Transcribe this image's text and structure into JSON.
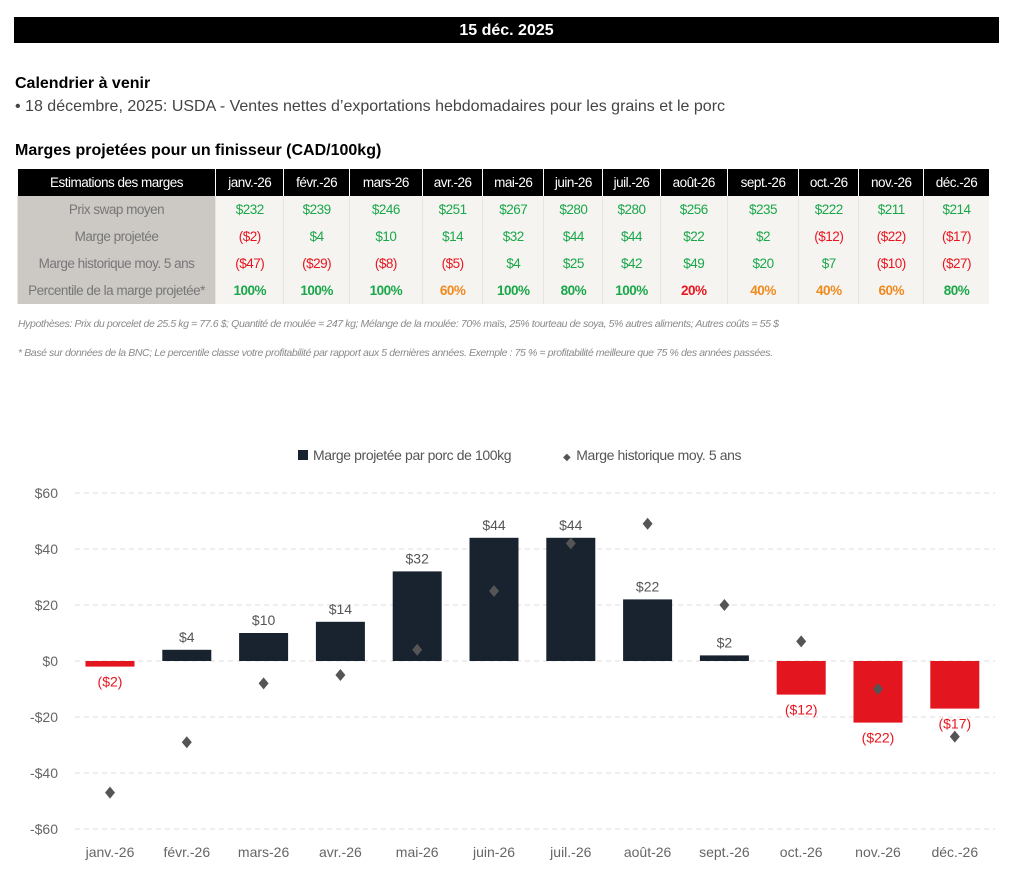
{
  "header": {
    "date": "15 déc. 2025"
  },
  "calendar": {
    "title": "Calendrier à venir",
    "events": [
      "• 18 décembre, 2025: USDA - Ventes nettes d’exportations hebdomadaires pour les grains et le porc"
    ]
  },
  "table": {
    "title": "Marges projetées pour un finisseur (CAD/100kg)",
    "header_label": "Estimations des marges",
    "months": [
      "janv.-26",
      "févr.-26",
      "mars-26",
      "avr.-26",
      "mai-26",
      "juin-26",
      "juil.-26",
      "août-26",
      "sept.-26",
      "oct.-26",
      "nov.-26",
      "déc.-26"
    ],
    "rows": [
      {
        "label": "Prix swap moyen",
        "values": [
          "$232",
          "$239",
          "$246",
          "$251",
          "$267",
          "$280",
          "$280",
          "$256",
          "$235",
          "$222",
          "$211",
          "$214"
        ],
        "colors": [
          "g",
          "g",
          "g",
          "g",
          "g",
          "g",
          "g",
          "g",
          "g",
          "g",
          "g",
          "g"
        ]
      },
      {
        "label": "Marge projetée",
        "values": [
          "($2)",
          "$4",
          "$10",
          "$14",
          "$32",
          "$44",
          "$44",
          "$22",
          "$2",
          "($12)",
          "($22)",
          "($17)"
        ],
        "colors": [
          "r",
          "g",
          "g",
          "g",
          "g",
          "g",
          "g",
          "g",
          "g",
          "r",
          "r",
          "r"
        ]
      },
      {
        "label": "Marge historique moy. 5 ans",
        "values": [
          "($47)",
          "($29)",
          "($8)",
          "($5)",
          "$4",
          "$25",
          "$42",
          "$49",
          "$20",
          "$7",
          "($10)",
          "($27)"
        ],
        "colors": [
          "r",
          "r",
          "r",
          "r",
          "g",
          "g",
          "g",
          "g",
          "g",
          "g",
          "r",
          "r"
        ]
      },
      {
        "label": "Percentile de la marge projetée*",
        "values": [
          "100%",
          "100%",
          "100%",
          "60%",
          "100%",
          "80%",
          "100%",
          "20%",
          "40%",
          "40%",
          "60%",
          "80%"
        ],
        "colors": [
          "g",
          "g",
          "g",
          "o",
          "g",
          "g",
          "g",
          "r",
          "o",
          "o",
          "o",
          "g"
        ]
      }
    ]
  },
  "notes": {
    "hypotheses": "Hypothèses: Prix du porcelet de 25.5 kg = 77.6 $; Quantité de moulée = 247 kg; Mélange de la moulée: 70% maïs, 25% tourteau de soya, 5% autres aliments; Autres coûts = 55 $",
    "footnote": "* Basé sur données de la BNC; Le percentile classe votre profitabilité par rapport aux 5 dernières années. Exemple : 75 % = profitabilité meilleure que 75 % des années passées."
  },
  "colors": {
    "positive_bar": "#18232f",
    "negative_bar": "#e3151f",
    "diamond": "#555555",
    "green": "#1aa74a",
    "red": "#e8151f",
    "orange": "#f08a1d"
  },
  "chart_data": {
    "type": "bar",
    "categories": [
      "janv.-26",
      "févr.-26",
      "mars-26",
      "avr.-26",
      "mai-26",
      "juin-26",
      "juil.-26",
      "août-26",
      "sept.-26",
      "oct.-26",
      "nov.-26",
      "déc.-26"
    ],
    "series": [
      {
        "name": "Marge projetée par porc de 100kg",
        "type": "bar",
        "values": [
          -2,
          4,
          10,
          14,
          32,
          44,
          44,
          22,
          2,
          -12,
          -22,
          -17
        ],
        "labels": [
          "($2)",
          "$4",
          "$10",
          "$14",
          "$32",
          "$44",
          "$44",
          "$22",
          "$2",
          "($12)",
          "($22)",
          "($17)"
        ]
      },
      {
        "name": "Marge historique moy. 5 ans",
        "type": "scatter",
        "marker": "diamond",
        "values": [
          -47,
          -29,
          -8,
          -5,
          4,
          25,
          42,
          49,
          20,
          7,
          -10,
          -27
        ]
      }
    ],
    "yticks": [
      "$60",
      "$40",
      "$20",
      "$0",
      "-$20",
      "-$40",
      "-$60"
    ],
    "ytick_values": [
      60,
      40,
      20,
      0,
      -20,
      -40,
      -60
    ],
    "ylim": [
      -60,
      60
    ],
    "grid": true,
    "legend": "top"
  }
}
